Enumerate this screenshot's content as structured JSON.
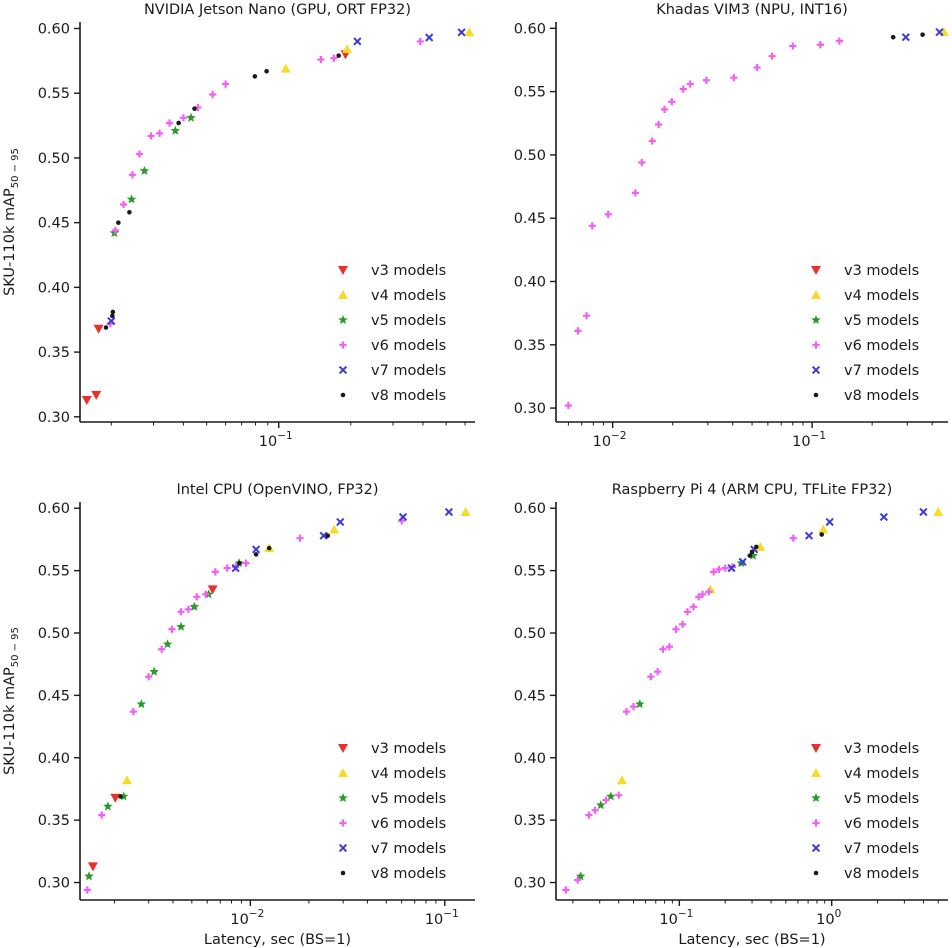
{
  "figure": {
    "ylabel": "SKU-110k mAP",
    "ylabel_sub": "50 − 95",
    "xlabel": "Latency, sec (BS=1)",
    "legend_entries": [
      "v3 models",
      "v4 models",
      "v5 models",
      "v6 models",
      "v7 models",
      "v8 models"
    ]
  },
  "series_style": [
    {
      "name": "v3 models",
      "marker": "triangle-down",
      "color": "#e8312b"
    },
    {
      "name": "v4 models",
      "marker": "triangle-up",
      "color": "#f5dc2a"
    },
    {
      "name": "v5 models",
      "marker": "star",
      "color": "#2b9a2b"
    },
    {
      "name": "v6 models",
      "marker": "plus",
      "color": "#f260f2"
    },
    {
      "name": "v7 models",
      "marker": "x",
      "color": "#3b3bd9"
    },
    {
      "name": "v8 models",
      "marker": "dot",
      "color": "#1a1a1a"
    }
  ],
  "chart_data": [
    {
      "type": "scatter",
      "title": "NVIDIA Jetson Nano (GPU, ORT FP32)",
      "xscale": "log",
      "xlim": [
        0.0148,
        0.66
      ],
      "ylim": [
        0.296,
        0.605
      ],
      "xticks": [
        {
          "value": 0.1,
          "label": "10",
          "exp": "−1"
        }
      ],
      "yticks": [
        0.3,
        0.35,
        0.4,
        0.45,
        0.5,
        0.55,
        0.6
      ],
      "yticklabels": [
        "0.30",
        "0.35",
        "0.40",
        "0.45",
        "0.50",
        "0.55",
        "0.60"
      ],
      "xlabel_shown": false,
      "ylabel_shown": true,
      "series": [
        {
          "name": "v3 models",
          "x": [
            0.0158,
            0.0173,
            0.0177,
            0.19
          ],
          "y": [
            0.313,
            0.317,
            0.368,
            0.58
          ]
        },
        {
          "name": "v4 models",
          "x": [
            0.107,
            0.193,
            0.625
          ],
          "y": [
            0.569,
            0.584,
            0.597
          ]
        },
        {
          "name": "v5 models",
          "x": [
            0.0206,
            0.0243,
            0.0275,
            0.037,
            0.043
          ],
          "y": [
            0.442,
            0.468,
            0.49,
            0.521,
            0.531
          ]
        },
        {
          "name": "v6 models",
          "x": [
            0.0198,
            0.0208,
            0.0225,
            0.0245,
            0.0262,
            0.0293,
            0.0318,
            0.035,
            0.04,
            0.046,
            0.053,
            0.06,
            0.15,
            0.17,
            0.39
          ],
          "y": [
            0.372,
            0.444,
            0.464,
            0.487,
            0.503,
            0.517,
            0.519,
            0.527,
            0.531,
            0.539,
            0.549,
            0.557,
            0.576,
            0.577,
            0.59
          ]
        },
        {
          "name": "v7 models",
          "x": [
            0.02,
            0.213,
            0.425,
            0.58
          ],
          "y": [
            0.374,
            0.59,
            0.593,
            0.597
          ]
        },
        {
          "name": "v8 models",
          "x": [
            0.019,
            0.0202,
            0.0203,
            0.0214,
            0.0238,
            0.0382,
            0.0445,
            0.0795,
            0.089,
            0.178
          ],
          "y": [
            0.369,
            0.378,
            0.381,
            0.45,
            0.458,
            0.527,
            0.538,
            0.563,
            0.567,
            0.579
          ]
        }
      ]
    },
    {
      "type": "scatter",
      "title": "Khadas VIM3 (NPU, INT16)",
      "xscale": "log",
      "xlim": [
        0.0052,
        0.48
      ],
      "ylim": [
        0.289,
        0.605
      ],
      "xticks": [
        {
          "value": 0.01,
          "label": "10",
          "exp": "−2"
        },
        {
          "value": 0.1,
          "label": "10",
          "exp": "−1"
        }
      ],
      "yticks": [
        0.3,
        0.35,
        0.4,
        0.45,
        0.5,
        0.55,
        0.6
      ],
      "yticklabels": [
        "0.30",
        "0.35",
        "0.40",
        "0.45",
        "0.50",
        "0.55",
        "0.60"
      ],
      "xlabel_shown": false,
      "ylabel_shown": false,
      "series": [
        {
          "name": "v3 models",
          "x": [],
          "y": []
        },
        {
          "name": "v4 models",
          "x": [
            0.458
          ],
          "y": [
            0.597
          ]
        },
        {
          "name": "v5 models",
          "x": [],
          "y": []
        },
        {
          "name": "v6 models",
          "x": [
            0.006,
            0.0067,
            0.0074,
            0.0079,
            0.0095,
            0.013,
            0.014,
            0.0158,
            0.017,
            0.0182,
            0.0198,
            0.0226,
            0.0245,
            0.0295,
            0.0405,
            0.053,
            0.063,
            0.08,
            0.11,
            0.137
          ],
          "y": [
            0.302,
            0.361,
            0.373,
            0.444,
            0.453,
            0.47,
            0.494,
            0.511,
            0.524,
            0.536,
            0.542,
            0.552,
            0.556,
            0.559,
            0.561,
            0.569,
            0.578,
            0.586,
            0.587,
            0.59
          ]
        },
        {
          "name": "v7 models",
          "x": [
            0.295,
            0.435
          ],
          "y": [
            0.593,
            0.597
          ]
        },
        {
          "name": "v8 models",
          "x": [
            0.255,
            0.358
          ],
          "y": [
            0.593,
            0.595
          ]
        }
      ]
    },
    {
      "type": "scatter",
      "title": "Intel CPU (OpenVINO, FP32)",
      "xscale": "log",
      "xlim": [
        0.00133,
        0.143
      ],
      "ylim": [
        0.286,
        0.605
      ],
      "xticks": [
        {
          "value": 0.01,
          "label": "10",
          "exp": "−2"
        },
        {
          "value": 0.1,
          "label": "10",
          "exp": "−1"
        }
      ],
      "yticks": [
        0.3,
        0.35,
        0.4,
        0.45,
        0.5,
        0.55,
        0.6
      ],
      "yticklabels": [
        "0.30",
        "0.35",
        "0.40",
        "0.45",
        "0.50",
        "0.55",
        "0.60"
      ],
      "xlabel_shown": true,
      "ylabel_shown": true,
      "series": [
        {
          "name": "v3 models",
          "x": [
            0.00155,
            0.00202,
            0.0064
          ],
          "y": [
            0.313,
            0.368,
            0.535
          ]
        },
        {
          "name": "v4 models",
          "x": [
            0.00232,
            0.0125,
            0.027,
            0.128
          ],
          "y": [
            0.382,
            0.568,
            0.583,
            0.597
          ]
        },
        {
          "name": "v5 models",
          "x": [
            0.00148,
            0.00185,
            0.00223,
            0.00275,
            0.0032,
            0.00375,
            0.0044,
            0.00515,
            0.0061,
            0.00875
          ],
          "y": [
            0.305,
            0.361,
            0.369,
            0.443,
            0.469,
            0.491,
            0.505,
            0.521,
            0.531,
            0.556
          ]
        },
        {
          "name": "v6 models",
          "x": [
            0.00145,
            0.00172,
            0.0025,
            0.003,
            0.0035,
            0.00395,
            0.0044,
            0.0048,
            0.0053,
            0.0059,
            0.0066,
            0.0076,
            0.0084,
            0.0095,
            0.018,
            0.06
          ],
          "y": [
            0.294,
            0.354,
            0.437,
            0.465,
            0.487,
            0.503,
            0.517,
            0.519,
            0.529,
            0.531,
            0.549,
            0.552,
            0.553,
            0.556,
            0.576,
            0.59
          ]
        },
        {
          "name": "v7 models",
          "x": [
            0.0084,
            0.0107,
            0.0238,
            0.029,
            0.061,
            0.105
          ],
          "y": [
            0.552,
            0.567,
            0.578,
            0.589,
            0.593,
            0.597
          ]
        },
        {
          "name": "v8 models",
          "x": [
            0.00215,
            0.0088,
            0.0107,
            0.0125,
            0.025
          ],
          "y": [
            0.369,
            0.556,
            0.563,
            0.568,
            0.578
          ]
        }
      ]
    },
    {
      "type": "scatter",
      "title": "Raspberry Pi 4 (ARM CPU, TFLite FP32)",
      "xscale": "log",
      "xlim": [
        0.0155,
        5.8
      ],
      "ylim": [
        0.286,
        0.605
      ],
      "xticks": [
        {
          "value": 0.1,
          "label": "10",
          "exp": "−1"
        },
        {
          "value": 1,
          "label": "10",
          "exp": "0"
        }
      ],
      "yticks": [
        0.3,
        0.35,
        0.4,
        0.45,
        0.5,
        0.55,
        0.6
      ],
      "yticklabels": [
        "0.30",
        "0.35",
        "0.40",
        "0.45",
        "0.50",
        "0.55",
        "0.60"
      ],
      "xlabel_shown": true,
      "ylabel_shown": false,
      "series": [
        {
          "name": "v3 models",
          "x": [],
          "y": []
        },
        {
          "name": "v4 models",
          "x": [
            0.042,
            0.16,
            0.34,
            0.88,
            5.0
          ],
          "y": [
            0.382,
            0.535,
            0.569,
            0.583,
            0.597
          ]
        },
        {
          "name": "v5 models",
          "x": [
            0.0225,
            0.0305,
            0.0355,
            0.055,
            0.255,
            0.305
          ],
          "y": [
            0.305,
            0.362,
            0.369,
            0.443,
            0.556,
            0.562
          ]
        },
        {
          "name": "v6 models",
          "x": [
            0.018,
            0.0215,
            0.0255,
            0.028,
            0.033,
            0.04,
            0.045,
            0.05,
            0.065,
            0.072,
            0.078,
            0.086,
            0.095,
            0.105,
            0.113,
            0.124,
            0.134,
            0.142,
            0.156,
            0.168,
            0.182,
            0.2,
            0.223,
            0.56
          ],
          "y": [
            0.294,
            0.302,
            0.354,
            0.358,
            0.366,
            0.37,
            0.437,
            0.441,
            0.465,
            0.469,
            0.487,
            0.489,
            0.503,
            0.507,
            0.517,
            0.521,
            0.529,
            0.531,
            0.533,
            0.549,
            0.551,
            0.552,
            0.553,
            0.576
          ]
        },
        {
          "name": "v7 models",
          "x": [
            0.22,
            0.26,
            0.31,
            0.71,
            0.97,
            2.2,
            4.0
          ],
          "y": [
            0.552,
            0.557,
            0.567,
            0.578,
            0.589,
            0.593,
            0.597
          ]
        },
        {
          "name": "v8 models",
          "x": [
            0.29,
            0.3,
            0.32,
            0.86
          ],
          "y": [
            0.562,
            0.565,
            0.569,
            0.579
          ]
        }
      ]
    }
  ]
}
